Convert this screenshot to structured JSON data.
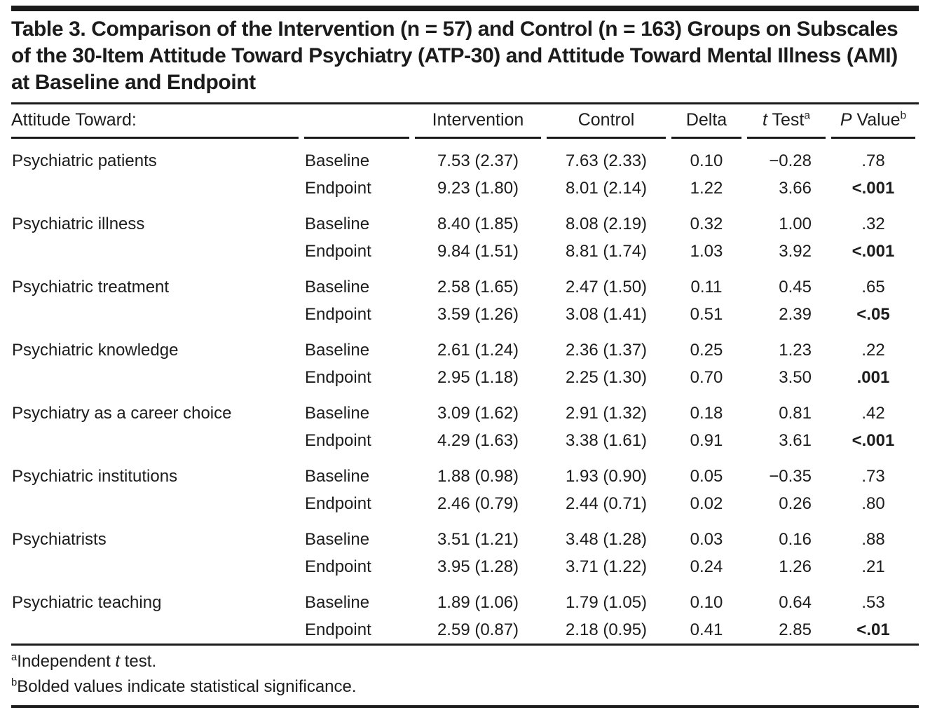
{
  "title": "Table 3. Comparison of the Intervention (n = 57) and Control (n = 163) Groups on Subscales of the 30-Item Attitude Toward Psychiatry (ATP-30) and Attitude Toward Mental Illness (AMI) at Baseline and Endpoint",
  "colors": {
    "text": "#1c1c1c",
    "rule": "#1b1b1b",
    "background": "#ffffff"
  },
  "header": {
    "col1": "Attitude Toward:",
    "intervention": "Intervention",
    "control": "Control",
    "delta": "Delta",
    "t_test": {
      "italic": "t",
      "text": " Test",
      "sup": "a"
    },
    "p_value": {
      "italic": "P",
      "text": " Value",
      "sup": "b"
    }
  },
  "groups": [
    {
      "label": "Psychiatric patients",
      "rows": [
        {
          "time": "Baseline",
          "intervention": "7.53 (2.37)",
          "control": "7.63 (2.33)",
          "delta": "0.10",
          "t": "−0.28",
          "p": ".78",
          "p_bold": false
        },
        {
          "time": "Endpoint",
          "intervention": "9.23 (1.80)",
          "control": "8.01 (2.14)",
          "delta": "1.22",
          "t": "3.66",
          "p": "<.001",
          "p_bold": true
        }
      ]
    },
    {
      "label": "Psychiatric illness",
      "rows": [
        {
          "time": "Baseline",
          "intervention": "8.40 (1.85)",
          "control": "8.08 (2.19)",
          "delta": "0.32",
          "t": "1.00",
          "p": ".32",
          "p_bold": false
        },
        {
          "time": "Endpoint",
          "intervention": "9.84 (1.51)",
          "control": "8.81 (1.74)",
          "delta": "1.03",
          "t": "3.92",
          "p": "<.001",
          "p_bold": true
        }
      ]
    },
    {
      "label": "Psychiatric treatment",
      "rows": [
        {
          "time": "Baseline",
          "intervention": "2.58 (1.65)",
          "control": "2.47 (1.50)",
          "delta": "0.11",
          "t": "0.45",
          "p": ".65",
          "p_bold": false
        },
        {
          "time": "Endpoint",
          "intervention": "3.59 (1.26)",
          "control": "3.08 (1.41)",
          "delta": "0.51",
          "t": "2.39",
          "p": "<.05",
          "p_bold": true
        }
      ]
    },
    {
      "label": "Psychiatric knowledge",
      "rows": [
        {
          "time": "Baseline",
          "intervention": "2.61 (1.24)",
          "control": "2.36 (1.37)",
          "delta": "0.25",
          "t": "1.23",
          "p": ".22",
          "p_bold": false
        },
        {
          "time": "Endpoint",
          "intervention": "2.95 (1.18)",
          "control": "2.25 (1.30)",
          "delta": "0.70",
          "t": "3.50",
          "p": ".001",
          "p_bold": true
        }
      ]
    },
    {
      "label": "Psychiatry as a career choice",
      "rows": [
        {
          "time": "Baseline",
          "intervention": "3.09 (1.62)",
          "control": "2.91 (1.32)",
          "delta": "0.18",
          "t": "0.81",
          "p": ".42",
          "p_bold": false
        },
        {
          "time": "Endpoint",
          "intervention": "4.29 (1.63)",
          "control": "3.38 (1.61)",
          "delta": "0.91",
          "t": "3.61",
          "p": "<.001",
          "p_bold": true
        }
      ]
    },
    {
      "label": "Psychiatric institutions",
      "rows": [
        {
          "time": "Baseline",
          "intervention": "1.88 (0.98)",
          "control": "1.93 (0.90)",
          "delta": "0.05",
          "t": "−0.35",
          "p": ".73",
          "p_bold": false
        },
        {
          "time": "Endpoint",
          "intervention": "2.46 (0.79)",
          "control": "2.44 (0.71)",
          "delta": "0.02",
          "t": "0.26",
          "p": ".80",
          "p_bold": false
        }
      ]
    },
    {
      "label": "Psychiatrists",
      "rows": [
        {
          "time": "Baseline",
          "intervention": "3.51 (1.21)",
          "control": "3.48 (1.28)",
          "delta": "0.03",
          "t": "0.16",
          "p": ".88",
          "p_bold": false
        },
        {
          "time": "Endpoint",
          "intervention": "3.95 (1.28)",
          "control": "3.71 (1.22)",
          "delta": "0.24",
          "t": "1.26",
          "p": ".21",
          "p_bold": false
        }
      ]
    },
    {
      "label": "Psychiatric teaching",
      "rows": [
        {
          "time": "Baseline",
          "intervention": "1.89 (1.06)",
          "control": "1.79 (1.05)",
          "delta": "0.10",
          "t": "0.64",
          "p": ".53",
          "p_bold": false
        },
        {
          "time": "Endpoint",
          "intervention": "2.59 (0.87)",
          "control": "2.18 (0.95)",
          "delta": "0.41",
          "t": "2.85",
          "p": "<.01",
          "p_bold": true
        }
      ]
    }
  ],
  "footnotes": {
    "a": {
      "sup": "a",
      "text_before": "Independent ",
      "italic": "t",
      "text_after": " test."
    },
    "b": {
      "sup": "b",
      "text": "Bolded values indicate statistical significance."
    }
  }
}
